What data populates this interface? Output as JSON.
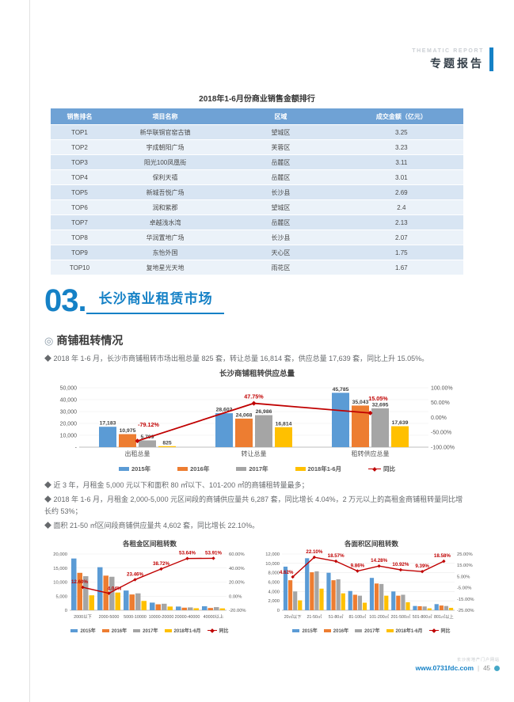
{
  "page": {
    "header": {
      "eyebrow": "THEMATIC REPORT",
      "title": "专题报告"
    },
    "sales_table": {
      "title": "2018年1-6月份商业销售金额排行",
      "columns": [
        "销售排名",
        "项目名称",
        "区域",
        "成交金额（亿元）"
      ],
      "rows": [
        [
          "TOP1",
          "新华联铜官窑古镇",
          "望城区",
          "3.25"
        ],
        [
          "TOP2",
          "宇成朝阳广场",
          "芙蓉区",
          "3.23"
        ],
        [
          "TOP3",
          "阳光100凤凰街",
          "岳麓区",
          "3.11"
        ],
        [
          "TOP4",
          "保利天禧",
          "岳麓区",
          "3.01"
        ],
        [
          "TOP5",
          "新城吾悦广场",
          "长沙县",
          "2.69"
        ],
        [
          "TOP6",
          "润和紫郡",
          "望城区",
          "2.4"
        ],
        [
          "TOP7",
          "卓越浅水湾",
          "岳麓区",
          "2.13"
        ],
        [
          "TOP8",
          "华润置地广场",
          "长沙县",
          "2.07"
        ],
        [
          "TOP9",
          "东怡外国",
          "天心区",
          "1.75"
        ],
        [
          "TOP10",
          "复地星光天地",
          "雨花区",
          "1.67"
        ]
      ]
    },
    "section": {
      "number": "03.",
      "title": "长沙商业租赁市场"
    },
    "subsection": {
      "bullet_icon": "◎",
      "title": "商铺租转情况"
    },
    "intro_bullet": "◆ 2018 年 1-6 月，长沙市商铺租转市场出租总量 825 套，转让总量 16,814 套，供应总量 17,639 套，同比上升 15.05%。",
    "mid_bullets": [
      "◆ 近 3 年，月租金 5,000 元以下和面积 80 ㎡以下、101-200 ㎡的商铺租转量最多；",
      "◆ 2018 年 1-6 月，月租金 2,000-5,000 元区间段的商铺供应量共 6,287 套，同比增长 4.04%，2 万元以上的高租金商铺租转量同比增长约 53%；",
      "◆ 面积 21-50 ㎡区间段商铺供应量共 4,602 套，同比增长 22.10%。"
    ],
    "footer": {
      "tagline": "长沙房地产门户网站",
      "site": "www.0731fdc.com",
      "divider": "|",
      "page_number": "45"
    }
  },
  "chart_data": [
    {
      "id": "main",
      "type": "bar",
      "title": "长沙商铺租转供应总量",
      "categories": [
        "出租总量",
        "转让总量",
        "租转供应总量"
      ],
      "series": [
        {
          "name": "2015年",
          "color": "#5B9BD5",
          "values": [
            17183,
            28602,
            45785
          ]
        },
        {
          "name": "2016年",
          "color": "#ED7D31",
          "values": [
            10975,
            24068,
            35043
          ]
        },
        {
          "name": "2017年",
          "color": "#A5A5A5",
          "values": [
            5709,
            26986,
            32695
          ]
        },
        {
          "name": "2018年1-6月",
          "color": "#FFC000",
          "values": [
            825,
            16814,
            17639
          ]
        }
      ],
      "line": {
        "name": "同比",
        "color": "#C00000",
        "values": [
          -79.12,
          47.75,
          15.05
        ],
        "labels": [
          "-79.12%",
          "47.75%",
          "15.05%"
        ],
        "label_dx": [
          14,
          0,
          10
        ],
        "label_dy": [
          -18,
          -6,
          -16
        ]
      },
      "left_axis": {
        "min": 0,
        "max": 50000,
        "ticks": [
          {
            "v": 50000,
            "label": "50,000"
          },
          {
            "v": 40000,
            "label": "40,000"
          },
          {
            "v": 30000,
            "label": "30,000"
          },
          {
            "v": 20000,
            "label": "20,000"
          },
          {
            "v": 10000,
            "label": "10,000"
          },
          {
            "v": 0,
            "label": "-"
          }
        ]
      },
      "right_axis": {
        "min": -100,
        "max": 100,
        "ticks": [
          {
            "v": 100,
            "label": "100.00%"
          },
          {
            "v": 50,
            "label": "50.00%"
          },
          {
            "v": 0,
            "label": "0.00%"
          },
          {
            "v": -50,
            "label": "-50.00%"
          },
          {
            "v": -100,
            "label": "-100.00%"
          }
        ]
      },
      "show_bar_labels": true,
      "grid": true,
      "legend_position": "bottom"
    },
    {
      "id": "rent",
      "type": "bar",
      "title": "各租金区间租转数",
      "categories": [
        "2000以下",
        "2000-5000",
        "5000-10000",
        "10000-20000",
        "20000-40000",
        "40000以上"
      ],
      "series": [
        {
          "name": "2015年",
          "color": "#5B9BD5",
          "values": [
            18400,
            15300,
            7000,
            2700,
            1300,
            1400
          ]
        },
        {
          "name": "2016年",
          "color": "#ED7D31",
          "values": [
            13300,
            12300,
            5600,
            2100,
            900,
            800
          ]
        },
        {
          "name": "2017年",
          "color": "#A5A5A5",
          "values": [
            12100,
            11900,
            6000,
            2300,
            1000,
            1100
          ]
        },
        {
          "name": "2018年1-6月",
          "color": "#FFC000",
          "values": [
            5300,
            6287,
            3300,
            1300,
            700,
            650
          ]
        }
      ],
      "line": {
        "name": "同比",
        "color": "#C00000",
        "values": [
          12.6,
          4.04,
          23.46,
          38.72,
          53.64,
          53.91
        ],
        "labels": [
          "12.60%",
          "4.04%",
          "23.46%",
          "38.72%",
          "53.64%",
          "53.91%"
        ],
        "label_dx": [
          -4,
          7,
          0,
          0,
          0,
          0
        ],
        "label_dy": [
          -5,
          -4,
          -5,
          -5,
          -5,
          -5
        ]
      },
      "left_axis": {
        "min": 0,
        "max": 20000,
        "ticks": [
          {
            "v": 20000,
            "label": "20,000"
          },
          {
            "v": 15000,
            "label": "15,000"
          },
          {
            "v": 10000,
            "label": "10,000"
          },
          {
            "v": 5000,
            "label": "5,000"
          },
          {
            "v": 0,
            "label": "0"
          }
        ]
      },
      "right_axis": {
        "min": -20,
        "max": 60,
        "ticks": [
          {
            "v": 60,
            "label": "60.00%"
          },
          {
            "v": 40,
            "label": "40.00%"
          },
          {
            "v": 20,
            "label": "20.00%"
          },
          {
            "v": 0,
            "label": "0.00%"
          },
          {
            "v": -20,
            "label": "-20.00%"
          }
        ]
      },
      "show_bar_labels": false,
      "grid": true,
      "legend_position": "bottom"
    },
    {
      "id": "area",
      "type": "bar",
      "title": "各面积区间租转数",
      "categories": [
        "20㎡以下",
        "21-50㎡",
        "51-80㎡",
        "81-100㎡",
        "101-200㎡",
        "201-500㎡",
        "501-800㎡",
        "801㎡以上"
      ],
      "series": [
        {
          "name": "2015年",
          "color": "#5B9BD5",
          "values": [
            9300,
            11100,
            8000,
            4100,
            6900,
            4000,
            900,
            1300
          ]
        },
        {
          "name": "2016年",
          "color": "#ED7D31",
          "values": [
            6400,
            8100,
            6400,
            3300,
            5700,
            3100,
            850,
            1000
          ]
        },
        {
          "name": "2017年",
          "color": "#A5A5A5",
          "values": [
            4000,
            8300,
            6600,
            3100,
            5600,
            3300,
            800,
            900
          ]
        },
        {
          "name": "2018年1-6月",
          "color": "#FFC000",
          "values": [
            2100,
            4602,
            3600,
            1600,
            3100,
            1700,
            400,
            500
          ]
        }
      ],
      "line": {
        "name": "同比",
        "color": "#C00000",
        "values": [
          4.62,
          22.1,
          18.57,
          9.86,
          14.28,
          10.92,
          9.39,
          18.58
        ],
        "labels": [
          "4.62%",
          "22.10%",
          "18.57%",
          "9.86%",
          "14.28%",
          "10.92%",
          "9.39%",
          "18.58%"
        ],
        "label_dx": [
          -8,
          0,
          0,
          0,
          0,
          0,
          0,
          -2
        ],
        "label_dy": [
          -4,
          -5,
          -5,
          -5,
          -5,
          -5,
          -5,
          -5
        ]
      },
      "left_axis": {
        "min": 0,
        "max": 12000,
        "ticks": [
          {
            "v": 12000,
            "label": "12,000"
          },
          {
            "v": 10000,
            "label": "10,000"
          },
          {
            "v": 8000,
            "label": "8,000"
          },
          {
            "v": 6000,
            "label": "6,000"
          },
          {
            "v": 4000,
            "label": "4,000"
          },
          {
            "v": 2000,
            "label": "2,000"
          },
          {
            "v": 0,
            "label": "0"
          }
        ]
      },
      "right_axis": {
        "min": -25,
        "max": 25,
        "ticks": [
          {
            "v": 25,
            "label": "25.00%"
          },
          {
            "v": 15,
            "label": "15.00%"
          },
          {
            "v": 5,
            "label": "5.00%"
          },
          {
            "v": -5,
            "label": "-5.00%"
          },
          {
            "v": -15,
            "label": "-15.00%"
          },
          {
            "v": -25,
            "label": "-25.00%"
          }
        ]
      },
      "show_bar_labels": false,
      "grid": true,
      "legend_position": "bottom"
    }
  ]
}
